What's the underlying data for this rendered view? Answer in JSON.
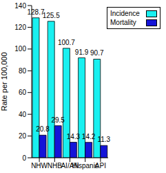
{
  "chart_data": {
    "type": "bar",
    "categories": [
      "NHW",
      "NHB",
      "AI/AN",
      "Hispanic",
      "API"
    ],
    "series": [
      {
        "name": "Incidence",
        "color": "#19f0f0",
        "values": [
          128.7,
          125.5,
          100.7,
          91.9,
          90.7
        ]
      },
      {
        "name": "Mortality",
        "color": "#1414d8",
        "values": [
          20.8,
          29.5,
          14.3,
          14.2,
          11.3
        ]
      }
    ],
    "y_label": "Rate per 100,000",
    "ylim": [
      0,
      140
    ],
    "yticks": [
      0,
      20,
      40,
      60,
      80,
      100,
      120,
      140
    ],
    "data_labels": true,
    "legend": "upper right",
    "grid": false
  }
}
